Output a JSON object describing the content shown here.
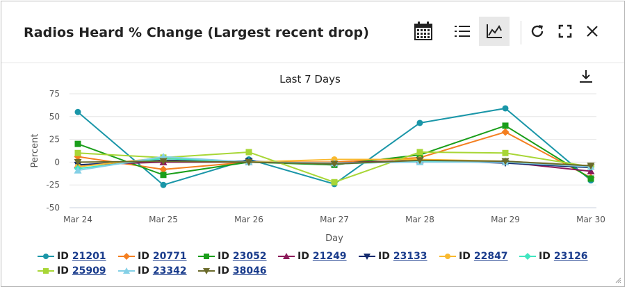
{
  "widget": {
    "title": "Radios Heard % Change (Largest recent drop)"
  },
  "toolbar": {
    "icons": [
      "calendar-icon",
      "list-icon",
      "line-chart-icon",
      "refresh-icon",
      "fullscreen-icon",
      "close-icon"
    ]
  },
  "chart_data": {
    "type": "line",
    "title": "Last 7 Days",
    "xlabel": "Day",
    "ylabel": "Percent",
    "categories": [
      "Mar 24",
      "Mar 25",
      "Mar 26",
      "Mar 27",
      "Mar 28",
      "Mar 29",
      "Mar 30"
    ],
    "yticks": [
      "75",
      "50",
      "25",
      "0",
      "-25",
      "-50"
    ],
    "ylim": [
      -50,
      75
    ],
    "grid": true,
    "legend_position": "bottom",
    "series": [
      {
        "name": "ID 21201",
        "prefix": "ID",
        "id": "21201",
        "color": "#1a96a8",
        "marker": "circle",
        "values": [
          55,
          -25,
          3,
          -24,
          43,
          59,
          -20
        ]
      },
      {
        "name": "ID 20771",
        "prefix": "ID",
        "id": "20771",
        "color": "#f47f20",
        "marker": "diamond",
        "values": [
          6,
          -8,
          0,
          0,
          5,
          33,
          -17
        ]
      },
      {
        "name": "ID 23052",
        "prefix": "ID",
        "id": "23052",
        "color": "#1a9e1a",
        "marker": "square",
        "values": [
          20,
          -14,
          0,
          -3,
          8,
          40,
          -18
        ]
      },
      {
        "name": "ID 21249",
        "prefix": "ID",
        "id": "21249",
        "color": "#8c1a5a",
        "marker": "triangle",
        "values": [
          -3,
          0,
          0,
          -1,
          2,
          0,
          -10
        ]
      },
      {
        "name": "ID 23133",
        "prefix": "ID",
        "id": "23133",
        "color": "#142a6e",
        "marker": "triangle-down",
        "values": [
          -3,
          2,
          1,
          -2,
          2,
          -1,
          -6
        ]
      },
      {
        "name": "ID 22847",
        "prefix": "ID",
        "id": "22847",
        "color": "#f9b92f",
        "marker": "circle",
        "values": [
          -5,
          5,
          0,
          3,
          3,
          1,
          -4
        ]
      },
      {
        "name": "ID 23126",
        "prefix": "ID",
        "id": "23126",
        "color": "#40e6c0",
        "marker": "diamond",
        "values": [
          -7,
          4,
          0,
          -2,
          1,
          1,
          -5
        ]
      },
      {
        "name": "ID 25909",
        "prefix": "ID",
        "id": "25909",
        "color": "#a8d636",
        "marker": "square",
        "values": [
          10,
          5,
          11,
          -22,
          11,
          10,
          -5
        ]
      },
      {
        "name": "ID 23342",
        "prefix": "ID",
        "id": "23342",
        "color": "#84d0e6",
        "marker": "triangle",
        "values": [
          -9,
          6,
          0,
          -1,
          0,
          0,
          -5
        ]
      },
      {
        "name": "ID 38046",
        "prefix": "ID",
        "id": "38046",
        "color": "#6a6a2a",
        "marker": "triangle-down",
        "values": [
          0,
          1,
          0,
          -2,
          2,
          1,
          -4
        ]
      }
    ]
  }
}
